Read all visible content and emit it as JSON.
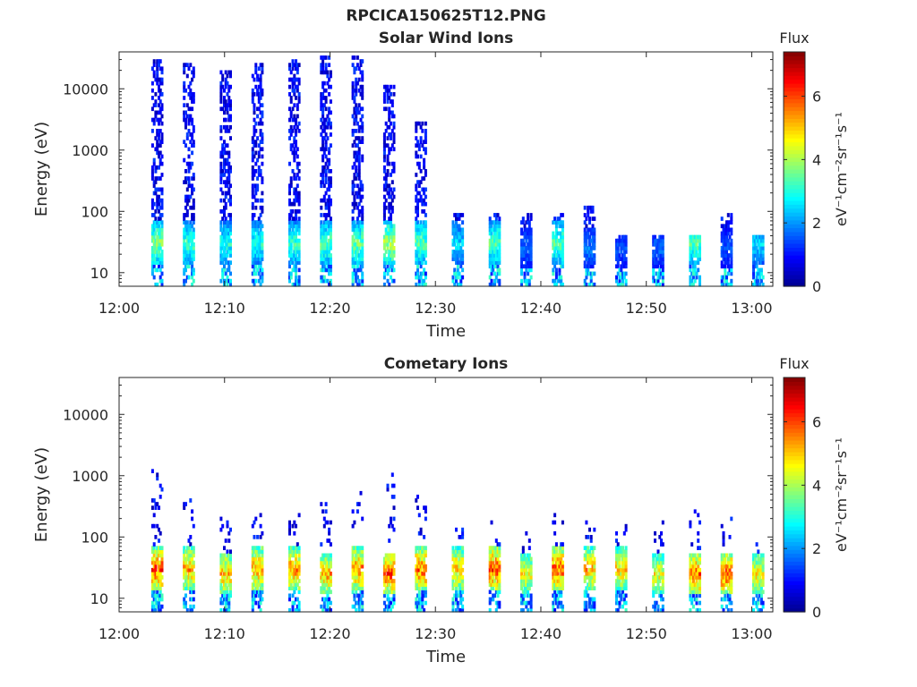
{
  "figure_title": "RPCICA150625T12.PNG",
  "colors": {
    "colormap": [
      "#00008f",
      "#0000ff",
      "#0080ff",
      "#00ffff",
      "#80ff80",
      "#ffff00",
      "#ff8000",
      "#ff0000",
      "#800000"
    ],
    "axes": "#262626",
    "background": "#ffffff"
  },
  "chart_data": [
    {
      "type": "heatmap",
      "title": "Solar Wind Ions",
      "xlabel": "Time",
      "ylabel": "Energy (eV)",
      "x_ticks": [
        "12:00",
        "12:10",
        "12:20",
        "12:30",
        "12:40",
        "12:50",
        "13:00"
      ],
      "x_range": [
        "12:00",
        "13:02"
      ],
      "y_scale": "log",
      "y_ticks": [
        "10",
        "100",
        "1000",
        "10000"
      ],
      "y_range": [
        6,
        40000
      ],
      "colorbar": {
        "title": "Flux",
        "label": "eV⁻¹cm⁻²sr⁻¹s⁻¹",
        "range": [
          0,
          7.4
        ],
        "ticks": [
          "0",
          "2",
          "4",
          "6"
        ]
      },
      "grid": false,
      "bursts": [
        {
          "t": "12:03.5",
          "peak_energy_ev": 30,
          "peak_flux": 4.5,
          "max_energy_ev": 30000
        },
        {
          "t": "12:06.5",
          "peak_energy_ev": 30,
          "peak_flux": 3.8,
          "max_energy_ev": 25000
        },
        {
          "t": "12:10.0",
          "peak_energy_ev": 30,
          "peak_flux": 3.5,
          "max_energy_ev": 20000
        },
        {
          "t": "12:13.0",
          "peak_energy_ev": 30,
          "peak_flux": 3.5,
          "max_energy_ev": 25000
        },
        {
          "t": "12:16.5",
          "peak_energy_ev": 30,
          "peak_flux": 3.8,
          "max_energy_ev": 30000
        },
        {
          "t": "12:19.5",
          "peak_energy_ev": 30,
          "peak_flux": 4.0,
          "max_energy_ev": 35000
        },
        {
          "t": "12:22.5",
          "peak_energy_ev": 30,
          "peak_flux": 4.2,
          "max_energy_ev": 35000
        },
        {
          "t": "12:25.5",
          "peak_energy_ev": 30,
          "peak_flux": 4.8,
          "max_energy_ev": 12000
        },
        {
          "t": "12:28.5",
          "peak_energy_ev": 30,
          "peak_flux": 4.0,
          "max_energy_ev": 3000
        },
        {
          "t": "12:32.0",
          "peak_energy_ev": 30,
          "peak_flux": 3.0,
          "max_energy_ev": 100
        },
        {
          "t": "12:35.5",
          "peak_energy_ev": 30,
          "peak_flux": 4.0,
          "max_energy_ev": 100
        },
        {
          "t": "12:38.5",
          "peak_energy_ev": 25,
          "peak_flux": 2.0,
          "max_energy_ev": 100
        },
        {
          "t": "12:41.5",
          "peak_energy_ev": 30,
          "peak_flux": 4.0,
          "max_energy_ev": 100
        },
        {
          "t": "12:44.5",
          "peak_energy_ev": 25,
          "peak_flux": 2.2,
          "max_energy_ev": 130
        },
        {
          "t": "12:47.5",
          "peak_energy_ev": 25,
          "peak_flux": 1.8,
          "max_energy_ev": 40
        },
        {
          "t": "12:51.0",
          "peak_energy_ev": 25,
          "peak_flux": 2.0,
          "max_energy_ev": 40
        },
        {
          "t": "12:54.5",
          "peak_energy_ev": 30,
          "peak_flux": 4.0,
          "max_energy_ev": 40
        },
        {
          "t": "12:57.5",
          "peak_energy_ev": 25,
          "peak_flux": 1.8,
          "max_energy_ev": 100
        },
        {
          "t": "13:00.5",
          "peak_energy_ev": 30,
          "peak_flux": 3.0,
          "max_energy_ev": 40
        }
      ]
    },
    {
      "type": "heatmap",
      "title": "Cometary Ions",
      "xlabel": "Time",
      "ylabel": "Energy (eV)",
      "x_ticks": [
        "12:00",
        "12:10",
        "12:20",
        "12:30",
        "12:40",
        "12:50",
        "13:00"
      ],
      "x_range": [
        "12:00",
        "13:02"
      ],
      "y_scale": "log",
      "y_ticks": [
        "10",
        "100",
        "1000",
        "10000"
      ],
      "y_range": [
        6,
        40000
      ],
      "colorbar": {
        "title": "Flux",
        "label": "eV⁻¹cm⁻²sr⁻¹s⁻¹",
        "range": [
          0,
          7.4
        ],
        "ticks": [
          "0",
          "2",
          "4",
          "6"
        ]
      },
      "grid": false,
      "bursts": [
        {
          "t": "12:03.5",
          "peak_energy_ev": 30,
          "peak_flux": 7.0,
          "max_energy_ev": 1200
        },
        {
          "t": "12:06.5",
          "peak_energy_ev": 30,
          "peak_flux": 6.2,
          "max_energy_ev": 400
        },
        {
          "t": "12:10.0",
          "peak_energy_ev": 25,
          "peak_flux": 6.0,
          "max_energy_ev": 300
        },
        {
          "t": "12:13.0",
          "peak_energy_ev": 30,
          "peak_flux": 6.3,
          "max_energy_ev": 250
        },
        {
          "t": "12:16.5",
          "peak_energy_ev": 30,
          "peak_flux": 6.4,
          "max_energy_ev": 300
        },
        {
          "t": "12:19.5",
          "peak_energy_ev": 25,
          "peak_flux": 6.2,
          "max_energy_ev": 400
        },
        {
          "t": "12:22.5",
          "peak_energy_ev": 30,
          "peak_flux": 6.5,
          "max_energy_ev": 600
        },
        {
          "t": "12:25.5",
          "peak_energy_ev": 25,
          "peak_flux": 6.8,
          "max_energy_ev": 1200
        },
        {
          "t": "12:28.5",
          "peak_energy_ev": 30,
          "peak_flux": 6.7,
          "max_energy_ev": 500
        },
        {
          "t": "12:32.0",
          "peak_energy_ev": 30,
          "peak_flux": 6.0,
          "max_energy_ev": 150
        },
        {
          "t": "12:35.5",
          "peak_energy_ev": 30,
          "peak_flux": 7.2,
          "max_energy_ev": 180
        },
        {
          "t": "12:38.5",
          "peak_energy_ev": 25,
          "peak_flux": 5.5,
          "max_energy_ev": 150
        },
        {
          "t": "12:41.5",
          "peak_energy_ev": 30,
          "peak_flux": 6.8,
          "max_energy_ev": 300
        },
        {
          "t": "12:44.5",
          "peak_energy_ev": 30,
          "peak_flux": 6.0,
          "max_energy_ev": 250
        },
        {
          "t": "12:47.5",
          "peak_energy_ev": 30,
          "peak_flux": 5.8,
          "max_energy_ev": 200
        },
        {
          "t": "12:51.0",
          "peak_energy_ev": 25,
          "peak_flux": 5.5,
          "max_energy_ev": 200
        },
        {
          "t": "12:54.5",
          "peak_energy_ev": 25,
          "peak_flux": 6.8,
          "max_energy_ev": 300
        },
        {
          "t": "12:57.5",
          "peak_energy_ev": 25,
          "peak_flux": 6.9,
          "max_energy_ev": 250
        },
        {
          "t": "13:00.5",
          "peak_energy_ev": 25,
          "peak_flux": 5.5,
          "max_energy_ev": 80
        }
      ]
    }
  ]
}
